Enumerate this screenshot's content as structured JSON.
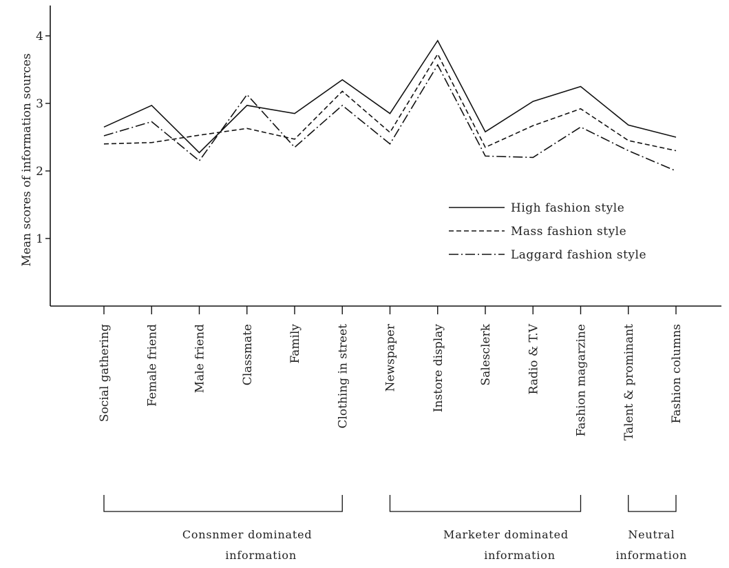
{
  "chart_data": {
    "type": "line",
    "ylabel": "Mean scores of information sources",
    "ylim": [
      0,
      4
    ],
    "yticks": [
      "1",
      "2",
      "3",
      "4"
    ],
    "grid": false,
    "legend_position": "right",
    "categories": [
      "Social gathering",
      "Female friend",
      "Male friend",
      "Classmate",
      "Family",
      "Clothing in street",
      "Newspaper",
      "Instore display",
      "Salesclerk",
      "Radio & T.V",
      "Fashion magarzine",
      "Talent & prominant",
      "Fashion columns"
    ],
    "series": [
      {
        "name": "High fashion style",
        "style": "solid",
        "values": [
          2.65,
          2.97,
          2.27,
          2.97,
          2.85,
          3.35,
          2.85,
          3.93,
          2.58,
          3.03,
          3.25,
          2.68,
          2.5
        ]
      },
      {
        "name": "Mass fashion style",
        "style": "dashed",
        "values": [
          2.4,
          2.42,
          2.53,
          2.63,
          2.47,
          3.18,
          2.57,
          3.73,
          2.35,
          2.67,
          2.92,
          2.45,
          2.3
        ]
      },
      {
        "name": "Laggard fashion style",
        "style": "dashdot",
        "values": [
          2.52,
          2.73,
          2.15,
          3.13,
          2.35,
          2.97,
          2.4,
          3.57,
          2.22,
          2.2,
          2.65,
          2.3,
          2.0
        ]
      }
    ],
    "groups": [
      {
        "line1": "Consnmer dominated",
        "line2": "information",
        "from": 0,
        "to": 5
      },
      {
        "line1": "Marketer dominated",
        "line2": "information",
        "from": 6,
        "to": 10
      },
      {
        "line1": "Neutral",
        "line2": "information",
        "from": 11,
        "to": 12
      }
    ]
  }
}
